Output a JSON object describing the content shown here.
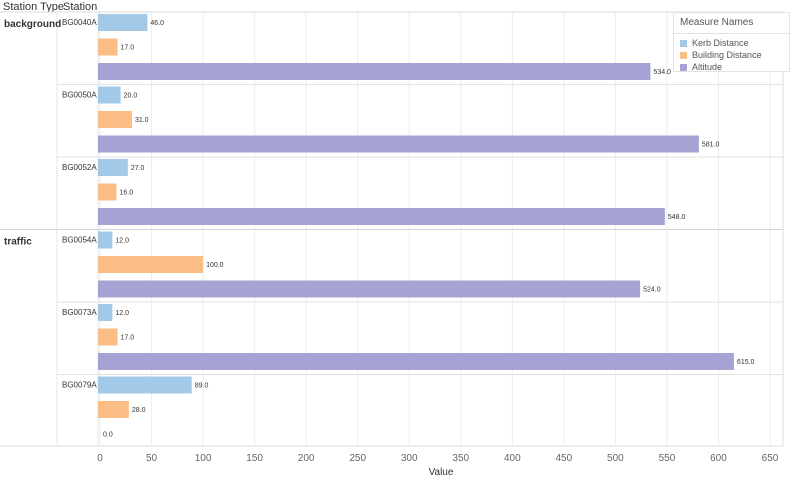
{
  "headers": {
    "station_type": "Station Type",
    "station": "Station"
  },
  "legend": {
    "title": "Measure Names",
    "items": [
      {
        "name": "Kerb Distance",
        "color": "#a3c9e8"
      },
      {
        "name": "Building Distance",
        "color": "#fbbd84"
      },
      {
        "name": "Altitude",
        "color": "#a6a3d4"
      }
    ]
  },
  "chart_data": {
    "type": "bar",
    "orientation": "horizontal",
    "xlabel": "Value",
    "xlim": [
      0,
      650
    ],
    "xticks": [
      0,
      50,
      100,
      150,
      200,
      250,
      300,
      350,
      400,
      450,
      500,
      550,
      600,
      650
    ],
    "grid": true,
    "legend_placement": "top-right",
    "series_names": [
      "Kerb Distance",
      "Building Distance",
      "Altitude"
    ],
    "groups": [
      {
        "station_type": "background",
        "stations": [
          {
            "station": "BG0040A",
            "values": [
              46.0,
              17.0,
              534.0
            ],
            "labels": [
              "46.0",
              "17.0",
              "534.0"
            ]
          },
          {
            "station": "BG0050A",
            "values": [
              20.0,
              31.0,
              581.0
            ],
            "labels": [
              "20.0",
              "31.0",
              "581.0"
            ]
          },
          {
            "station": "BG0052A",
            "values": [
              27.0,
              16.0,
              548.0
            ],
            "labels": [
              "27.0",
              "16.0",
              "548.0"
            ]
          }
        ]
      },
      {
        "station_type": "traffic",
        "stations": [
          {
            "station": "BG0054A",
            "values": [
              12.0,
              100.0,
              524.0
            ],
            "labels": [
              "12.0",
              "100.0",
              "524.0"
            ]
          },
          {
            "station": "BG0073A",
            "values": [
              12.0,
              17.0,
              615.0
            ],
            "labels": [
              "12.0",
              "17.0",
              "615.0"
            ]
          },
          {
            "station": "BG0079A",
            "values": [
              89.0,
              28.0,
              0.0
            ],
            "labels": [
              "89.0",
              "28.0",
              "0.0"
            ]
          }
        ]
      }
    ]
  }
}
